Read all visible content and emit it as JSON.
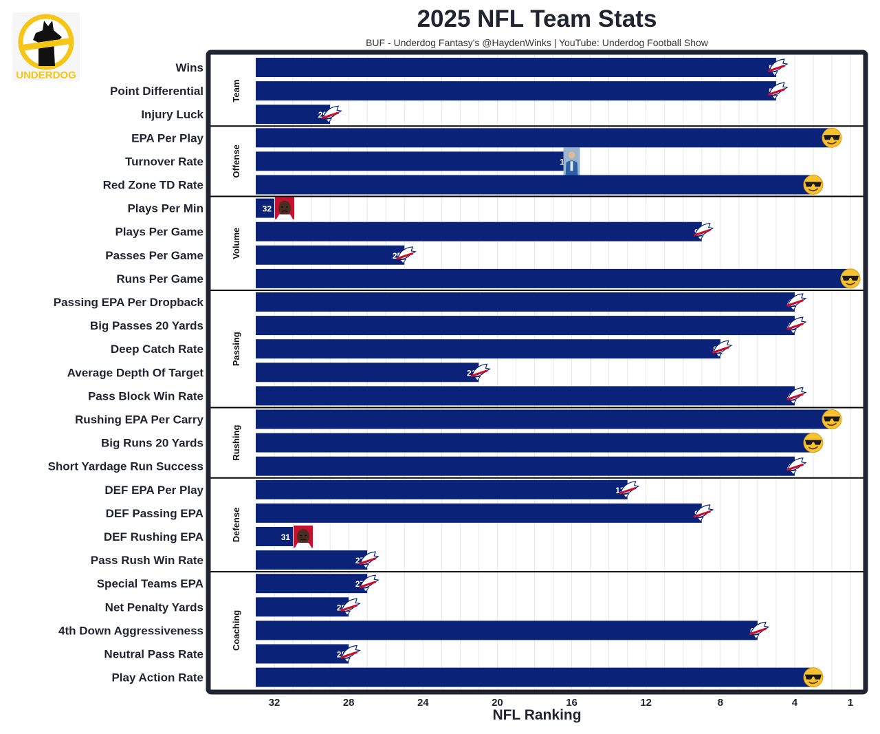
{
  "page": {
    "title": "2025 NFL Team Stats",
    "subtitle": "BUF - Underdog Fantasy's @HaydenWinks | YouTube: Underdog Football Show",
    "logo_text": "UNDERDOG"
  },
  "colors": {
    "bar": "#0a2378",
    "frame": "#1f2430",
    "bills_red": "#c8102e",
    "logo_yellow": "#f5c518",
    "emoji_face": "#f7c230"
  },
  "chart_data": {
    "type": "bar",
    "orientation": "horizontal",
    "title": "2025 NFL Team Stats",
    "subtitle": "BUF - Underdog Fantasy's @HaydenWinks | YouTube: Underdog Football Show",
    "xlabel": "NFL Ranking",
    "x_reversed": true,
    "xlim": [
      33,
      1
    ],
    "x_ticks": [
      32,
      28,
      24,
      20,
      16,
      12,
      8,
      4,
      1
    ],
    "grid": "vertical",
    "groups": [
      {
        "name": "Team",
        "metrics": [
          {
            "label": "Wins",
            "value": 5,
            "marker": "bills-logo-icon"
          },
          {
            "label": "Point Differential",
            "value": 5,
            "marker": "bills-logo-icon"
          },
          {
            "label": "Injury Luck",
            "value": 29,
            "marker": "bills-logo-icon"
          }
        ]
      },
      {
        "name": "Offense",
        "metrics": [
          {
            "label": "EPA Per Play",
            "value": 2,
            "marker": "cool-emoji-icon"
          },
          {
            "label": "Turnover Rate",
            "value": 16,
            "marker": "player-photo-icon"
          },
          {
            "label": "Red Zone TD Rate",
            "value": 3,
            "marker": "cool-emoji-icon"
          }
        ]
      },
      {
        "name": "Volume",
        "metrics": [
          {
            "label": "Plays Per Min",
            "value": 32,
            "marker": "crying-face-icon"
          },
          {
            "label": "Plays Per Game",
            "value": 9,
            "marker": "bills-logo-icon"
          },
          {
            "label": "Passes Per Game",
            "value": 25,
            "marker": "bills-logo-icon"
          },
          {
            "label": "Runs Per Game",
            "value": 1,
            "marker": "cool-emoji-icon"
          }
        ]
      },
      {
        "name": "Passing",
        "metrics": [
          {
            "label": "Passing EPA Per Dropback",
            "value": 4,
            "marker": "bills-logo-icon"
          },
          {
            "label": "Big Passes 20 Yards",
            "value": 4,
            "marker": "bills-logo-icon"
          },
          {
            "label": "Deep Catch Rate",
            "value": 8,
            "marker": "bills-logo-icon"
          },
          {
            "label": "Average Depth Of Target",
            "value": 21,
            "marker": "bills-logo-icon"
          },
          {
            "label": "Pass Block Win Rate",
            "value": 4,
            "marker": "bills-logo-icon"
          }
        ]
      },
      {
        "name": "Rushing",
        "metrics": [
          {
            "label": "Rushing EPA Per Carry",
            "value": 2,
            "marker": "cool-emoji-icon"
          },
          {
            "label": "Big Runs 20 Yards",
            "value": 3,
            "marker": "cool-emoji-icon"
          },
          {
            "label": "Short Yardage Run Success",
            "value": 4,
            "marker": "bills-logo-icon"
          }
        ]
      },
      {
        "name": "Defense",
        "metrics": [
          {
            "label": "DEF EPA Per Play",
            "value": 13,
            "marker": "bills-logo-icon"
          },
          {
            "label": "DEF Passing EPA",
            "value": 9,
            "marker": "bills-logo-icon"
          },
          {
            "label": "DEF Rushing EPA",
            "value": 31,
            "marker": "crying-face-icon"
          },
          {
            "label": "Pass Rush Win Rate",
            "value": 27,
            "marker": "bills-logo-icon"
          }
        ]
      },
      {
        "name": "Coaching",
        "metrics": [
          {
            "label": "Special Teams EPA",
            "value": 27,
            "marker": "bills-logo-icon"
          },
          {
            "label": "Net Penalty Yards",
            "value": 28,
            "marker": "bills-logo-icon"
          },
          {
            "label": "4th Down Aggressiveness",
            "value": 6,
            "marker": "bills-logo-icon"
          },
          {
            "label": "Neutral Pass Rate",
            "value": 28,
            "marker": "bills-logo-icon"
          },
          {
            "label": "Play Action Rate",
            "value": 3,
            "marker": "cool-emoji-icon"
          }
        ]
      }
    ]
  }
}
